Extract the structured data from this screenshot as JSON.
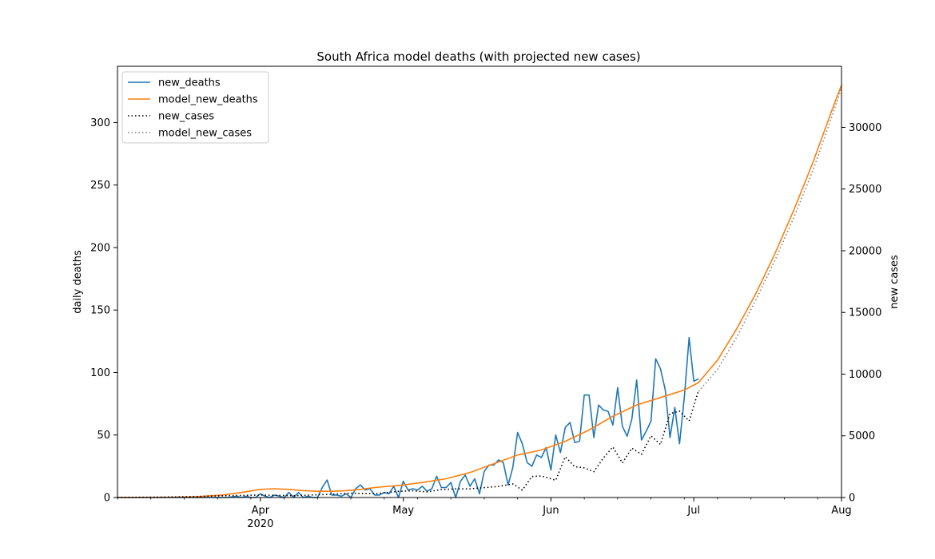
{
  "chart_data": {
    "type": "line",
    "title": "South Africa model deaths (with projected new cases)",
    "x_axis": {
      "range": [
        "2020-03-02",
        "2020-08-01"
      ],
      "tick_labels": [
        {
          "date": "2020-04-01",
          "label": "Apr",
          "sublabel": "2020"
        },
        {
          "date": "2020-05-01",
          "label": "May",
          "sublabel": ""
        },
        {
          "date": "2020-06-01",
          "label": "Jun",
          "sublabel": ""
        },
        {
          "date": "2020-07-01",
          "label": "Jul",
          "sublabel": ""
        },
        {
          "date": "2020-08-01",
          "label": "Aug",
          "sublabel": ""
        }
      ]
    },
    "y_left": {
      "label": "daily deaths",
      "range": [
        0,
        345
      ],
      "ticks": [
        0,
        50,
        100,
        150,
        200,
        250,
        300
      ]
    },
    "y_right": {
      "label": "new cases",
      "range": [
        0,
        34950
      ],
      "ticks": [
        0,
        5000,
        10000,
        15000,
        20000,
        25000,
        30000
      ]
    },
    "legend": {
      "placement": "top-left",
      "entries": [
        {
          "name": "new_deaths",
          "color": "#1f77b4",
          "style": "solid"
        },
        {
          "name": "model_new_deaths",
          "color": "#ff7f0e",
          "style": "solid"
        },
        {
          "name": "new_cases",
          "color": "#000000",
          "style": "dotted"
        },
        {
          "name": "model_new_cases",
          "color": "#808080",
          "style": "dotted"
        }
      ]
    },
    "series": [
      {
        "name": "new_deaths",
        "axis": "left",
        "color": "#1f77b4",
        "style": "solid",
        "x": [
          "2020-03-02",
          "2020-03-05",
          "2020-03-10",
          "2020-03-15",
          "2020-03-20",
          "2020-03-25",
          "2020-03-27",
          "2020-03-28",
          "2020-03-29",
          "2020-03-30",
          "2020-03-31",
          "2020-04-01",
          "2020-04-02",
          "2020-04-03",
          "2020-04-04",
          "2020-04-05",
          "2020-04-06",
          "2020-04-07",
          "2020-04-08",
          "2020-04-09",
          "2020-04-10",
          "2020-04-11",
          "2020-04-12",
          "2020-04-13",
          "2020-04-14",
          "2020-04-15",
          "2020-04-16",
          "2020-04-17",
          "2020-04-18",
          "2020-04-19",
          "2020-04-20",
          "2020-04-21",
          "2020-04-22",
          "2020-04-23",
          "2020-04-24",
          "2020-04-25",
          "2020-04-26",
          "2020-04-27",
          "2020-04-28",
          "2020-04-29",
          "2020-04-30",
          "2020-05-01",
          "2020-05-02",
          "2020-05-03",
          "2020-05-04",
          "2020-05-05",
          "2020-05-06",
          "2020-05-07",
          "2020-05-08",
          "2020-05-09",
          "2020-05-10",
          "2020-05-11",
          "2020-05-12",
          "2020-05-13",
          "2020-05-14",
          "2020-05-15",
          "2020-05-16",
          "2020-05-17",
          "2020-05-18",
          "2020-05-19",
          "2020-05-20",
          "2020-05-21",
          "2020-05-22",
          "2020-05-23",
          "2020-05-24",
          "2020-05-25",
          "2020-05-26",
          "2020-05-27",
          "2020-05-28",
          "2020-05-29",
          "2020-05-30",
          "2020-05-31",
          "2020-06-01",
          "2020-06-02",
          "2020-06-03",
          "2020-06-04",
          "2020-06-05",
          "2020-06-06",
          "2020-06-07",
          "2020-06-08",
          "2020-06-09",
          "2020-06-10",
          "2020-06-11",
          "2020-06-12",
          "2020-06-13",
          "2020-06-14",
          "2020-06-15",
          "2020-06-16",
          "2020-06-17",
          "2020-06-18",
          "2020-06-19",
          "2020-06-20",
          "2020-06-21",
          "2020-06-22",
          "2020-06-23",
          "2020-06-24",
          "2020-06-25",
          "2020-06-26",
          "2020-06-27",
          "2020-06-28",
          "2020-06-29",
          "2020-06-30",
          "2020-07-01",
          "2020-07-02"
        ],
        "values": [
          0,
          0,
          0,
          0,
          0,
          0,
          1,
          0,
          1,
          0,
          0,
          3,
          1,
          0,
          2,
          1,
          0,
          4,
          0,
          4,
          0,
          1,
          0,
          0,
          8,
          14,
          2,
          2,
          1,
          3,
          0,
          7,
          10,
          6,
          7,
          2,
          2,
          4,
          3,
          9,
          0,
          13,
          6,
          7,
          6,
          9,
          5,
          7,
          17,
          8,
          8,
          12,
          0,
          13,
          18,
          9,
          15,
          3,
          21,
          26,
          26,
          30,
          28,
          10,
          24,
          52,
          43,
          28,
          25,
          34,
          32,
          40,
          22,
          50,
          36,
          56,
          60,
          44,
          45,
          82,
          82,
          48,
          74,
          70,
          69,
          58,
          88,
          57,
          49,
          63,
          94,
          46,
          53,
          61,
          111,
          103,
          86,
          48,
          72,
          43,
          80,
          128,
          93,
          95
        ]
      },
      {
        "name": "model_new_deaths",
        "axis": "left",
        "color": "#ff7f0e",
        "style": "solid",
        "x": [
          "2020-03-02",
          "2020-03-10",
          "2020-03-18",
          "2020-03-24",
          "2020-03-28",
          "2020-04-01",
          "2020-04-04",
          "2020-04-07",
          "2020-04-10",
          "2020-04-13",
          "2020-04-16",
          "2020-04-19",
          "2020-04-22",
          "2020-04-25",
          "2020-04-28",
          "2020-05-01",
          "2020-05-05",
          "2020-05-10",
          "2020-05-15",
          "2020-05-20",
          "2020-05-25",
          "2020-05-30",
          "2020-06-04",
          "2020-06-09",
          "2020-06-14",
          "2020-06-19",
          "2020-06-24",
          "2020-06-29",
          "2020-07-02",
          "2020-07-06",
          "2020-07-10",
          "2020-07-14",
          "2020-07-18",
          "2020-07-22",
          "2020-07-26",
          "2020-07-30",
          "2020-08-01"
        ],
        "values": [
          0,
          0,
          0.5,
          2,
          4,
          6.5,
          7,
          6.5,
          5.5,
          5,
          5,
          5.5,
          6.5,
          8,
          9,
          10,
          12,
          15,
          20,
          27,
          34,
          38,
          45,
          54,
          65,
          74,
          80,
          86,
          92,
          110,
          135,
          163,
          195,
          230,
          268,
          310,
          330
        ]
      },
      {
        "name": "new_cases",
        "axis": "right",
        "color": "#000000",
        "style": "dotted",
        "x": [
          "2020-03-02",
          "2020-03-15",
          "2020-03-25",
          "2020-04-01",
          "2020-04-08",
          "2020-04-15",
          "2020-04-20",
          "2020-04-25",
          "2020-04-30",
          "2020-05-03",
          "2020-05-06",
          "2020-05-09",
          "2020-05-12",
          "2020-05-15",
          "2020-05-18",
          "2020-05-21",
          "2020-05-24",
          "2020-05-26",
          "2020-05-28",
          "2020-05-30",
          "2020-06-02",
          "2020-06-04",
          "2020-06-06",
          "2020-06-08",
          "2020-06-10",
          "2020-06-12",
          "2020-06-14",
          "2020-06-16",
          "2020-06-18",
          "2020-06-20",
          "2020-06-22",
          "2020-06-24",
          "2020-06-26",
          "2020-06-28",
          "2020-06-30",
          "2020-07-02"
        ],
        "values": [
          0,
          50,
          150,
          200,
          150,
          250,
          350,
          300,
          500,
          550,
          450,
          650,
          700,
          700,
          800,
          900,
          1100,
          600,
          1700,
          1750,
          1400,
          3300,
          2500,
          2400,
          2100,
          3200,
          4100,
          2800,
          4000,
          3500,
          5000,
          4300,
          6800,
          7000,
          6200,
          8700
        ]
      },
      {
        "name": "model_new_cases",
        "axis": "right",
        "color": "#808080",
        "style": "dotted",
        "x": [
          "2020-07-02",
          "2020-07-06",
          "2020-07-10",
          "2020-07-14",
          "2020-07-18",
          "2020-07-22",
          "2020-07-26",
          "2020-07-30",
          "2020-08-01"
        ],
        "values": [
          8600,
          10400,
          13000,
          16000,
          19200,
          22700,
          26500,
          30900,
          33200
        ]
      }
    ]
  }
}
